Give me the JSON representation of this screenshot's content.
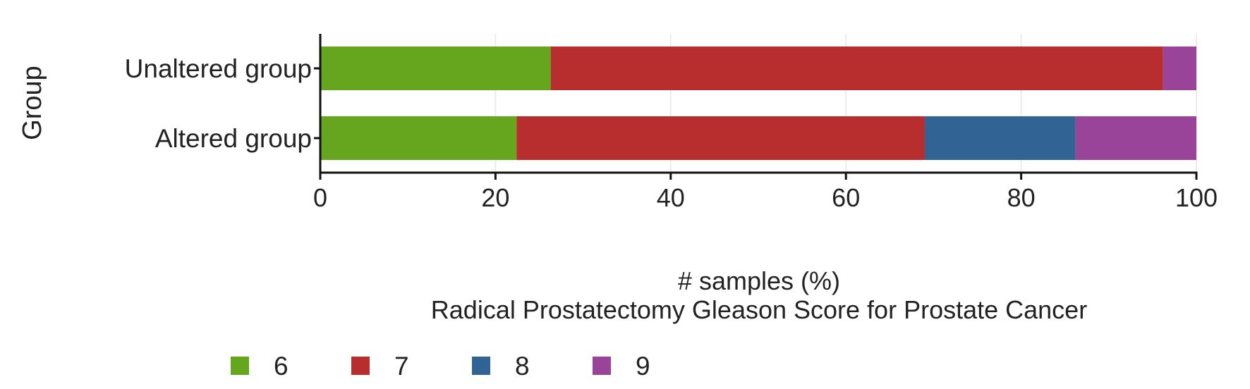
{
  "chart_data": {
    "type": "bar",
    "orientation": "horizontal",
    "stacked": true,
    "y_axis_title": "Group",
    "x_axis_title": "# samples (%)",
    "legend_title": "Radical Prostatectomy Gleason Score for Prostate Cancer",
    "legend_position": "bottom",
    "categories": [
      "Unaltered group",
      "Altered group"
    ],
    "xlim": [
      0,
      100
    ],
    "x_ticks": [
      0,
      20,
      40,
      60,
      80,
      100
    ],
    "grid": true,
    "series": [
      {
        "name": "6",
        "color": "#66a61e",
        "values": [
          26.3,
          22.4
        ]
      },
      {
        "name": "7",
        "color": "#b82e2e",
        "values": [
          69.9,
          46.6
        ]
      },
      {
        "name": "8",
        "color": "#316395",
        "values": [
          0.0,
          17.2
        ]
      },
      {
        "name": "9",
        "color": "#994499",
        "values": [
          3.8,
          13.8
        ]
      }
    ]
  }
}
